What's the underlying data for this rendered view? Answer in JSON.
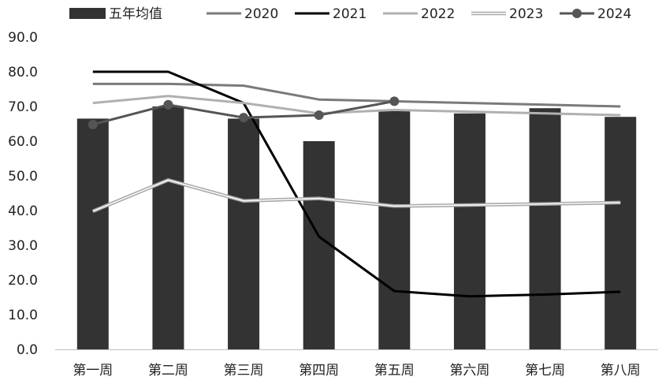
{
  "chart_data": {
    "type": "bar",
    "categories": [
      "第一周",
      "第二周",
      "第三周",
      "第四周",
      "第五周",
      "第六周",
      "第七周",
      "第八周"
    ],
    "ylim": [
      0,
      90
    ],
    "yticks": [
      0,
      10,
      20,
      30,
      40,
      50,
      60,
      70,
      80,
      90
    ],
    "ytick_labels": [
      "0.0",
      "10.0",
      "20.0",
      "30.0",
      "40.0",
      "50.0",
      "60.0",
      "70.0",
      "80.0",
      "90.0"
    ],
    "legend_position": "top",
    "grid": false,
    "bar_series": {
      "name": "五年均值",
      "color": "#333333",
      "values": [
        66.5,
        70.0,
        66.5,
        60.0,
        69.0,
        68.0,
        69.5,
        67.0
      ]
    },
    "line_series": [
      {
        "name": "2020",
        "color": "#7a7a7a",
        "style": "solid",
        "values": [
          76.5,
          76.5,
          76.0,
          72.0,
          71.5,
          71.0,
          70.5,
          70.0
        ]
      },
      {
        "name": "2021",
        "color": "#000000",
        "style": "solid",
        "values": [
          80.0,
          80.0,
          71.0,
          32.5,
          16.8,
          15.3,
          15.8,
          16.6
        ]
      },
      {
        "name": "2022",
        "color": "#b0b0b0",
        "style": "solid",
        "values": [
          71.0,
          73.0,
          71.0,
          68.0,
          69.0,
          68.5,
          68.0,
          67.5
        ]
      },
      {
        "name": "2023",
        "color": "#a8a8a8",
        "style": "double",
        "values": [
          39.8,
          48.8,
          42.8,
          43.5,
          41.3,
          41.6,
          41.9,
          42.3
        ]
      },
      {
        "name": "2024",
        "color": "#555555",
        "style": "marker",
        "values": [
          64.8,
          70.5,
          66.8,
          67.5,
          71.5,
          null,
          null,
          null
        ]
      }
    ]
  }
}
